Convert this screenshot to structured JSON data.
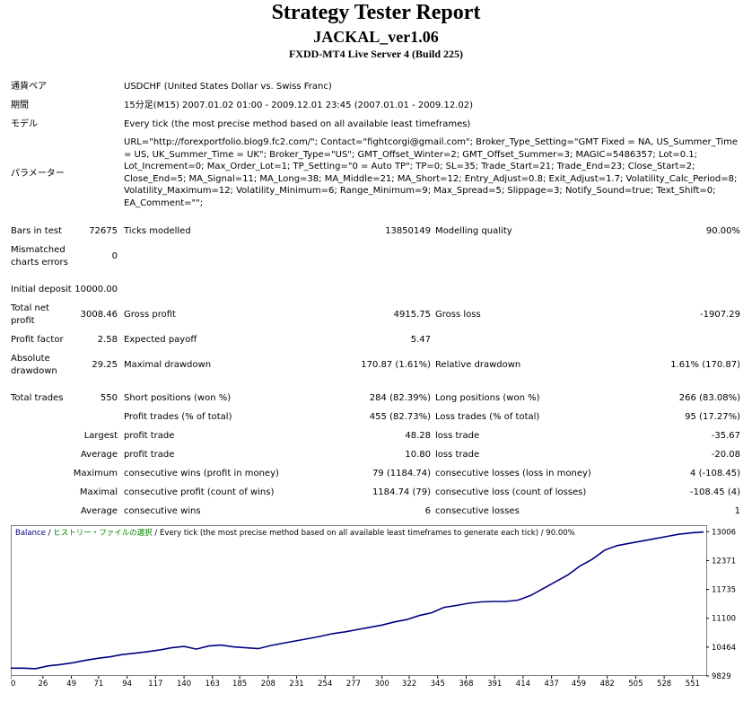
{
  "header": {
    "title": "Strategy Tester Report",
    "ea_name": "JACKAL_ver1.06",
    "server": "FXDD-MT4 Live Server 4 (Build 225)"
  },
  "settings": {
    "symbol_label": "通貨ペア",
    "symbol_value": "USDCHF (United States Dollar vs. Swiss Franc)",
    "period_label": "期間",
    "period_value": "15分足(M15) 2007.01.02 01:00 - 2009.12.01 23:45 (2007.01.01 - 2009.12.02)",
    "model_label": "モデル",
    "model_value": "Every tick (the most precise method based on all available least timeframes)",
    "params_label": "パラメーター",
    "params_value": "URL=\"http://forexportfolio.blog9.fc2.com/\"; Contact=\"fightcorgi@gmail.com\"; Broker_Type_Setting=\"GMT Fixed = NA, US_Summer_Time = US, UK_Summer_Time = UK\"; Broker_Type=\"US\"; GMT_Offset_Winter=2; GMT_Offset_Summer=3; MAGIC=5486357; Lot=0.1; Lot_Increment=0; Max_Order_Lot=1; TP_Setting=\"0 = Auto TP\"; TP=0; SL=35; Trade_Start=21; Trade_End=23; Close_Start=2; Close_End=5; MA_Signal=11; MA_Long=38; MA_Middle=21; MA_Short=12; Entry_Adjust=0.8; Exit_Adjust=1.7; Volatility_Calc_Period=8; Volatility_Maximum=12; Volatility_Minimum=6; Range_Minimum=9; Max_Spread=5; Slippage=3; Notify_Sound=true; Text_Shift=0; EA_Comment=\"\";"
  },
  "stats": {
    "bars_label": "Bars in test",
    "bars_value": "72675",
    "ticks_label": "Ticks modelled",
    "ticks_value": "13850149",
    "quality_label": "Modelling quality",
    "quality_value": "90.00%",
    "mismatch_label1": "Mismatched",
    "mismatch_label2": "charts errors",
    "mismatch_value": "0",
    "deposit_label": "Initial deposit",
    "deposit_value": "10000.00",
    "netprofit_label1": "Total net",
    "netprofit_label2": "profit",
    "netprofit_value": "3008.46",
    "grossprofit_label": "Gross profit",
    "grossprofit_value": "4915.75",
    "grossloss_label": "Gross loss",
    "grossloss_value": "-1907.29",
    "pf_label": "Profit factor",
    "pf_value": "2.58",
    "ep_label": "Expected payoff",
    "ep_value": "5.47",
    "absdd_label1": "Absolute",
    "absdd_label2": "drawdown",
    "absdd_value": "29.25",
    "maxdd_label": "Maximal drawdown",
    "maxdd_value": "170.87 (1.61%)",
    "reldd_label": "Relative drawdown",
    "reldd_value": "1.61% (170.87)",
    "trades_label": "Total trades",
    "trades_value": "550",
    "short_label": "Short positions (won %)",
    "short_value": "284 (82.39%)",
    "long_label": "Long positions (won %)",
    "long_value": "266 (83.08%)",
    "profit_trades_label": "Profit trades (% of total)",
    "profit_trades_value": "455 (82.73%)",
    "loss_trades_label": "Loss trades (% of total)",
    "loss_trades_value": "95 (17.27%)",
    "largest_label": "Largest",
    "largest_profit_label": "profit trade",
    "largest_profit_value": "48.28",
    "largest_loss_label": "loss trade",
    "largest_loss_value": "-35.67",
    "average_label": "Average",
    "average_profit_label": "profit trade",
    "average_profit_value": "10.80",
    "average_loss_label": "loss trade",
    "average_loss_value": "-20.08",
    "maximum_label": "Maximum",
    "max_cons_wins_label": "consecutive wins (profit in money)",
    "max_cons_wins_value": "79 (1184.74)",
    "max_cons_losses_label": "consecutive losses (loss in money)",
    "max_cons_losses_value": "4 (-108.45)",
    "maximal_label": "Maximal",
    "max_cons_profit_label": "consecutive profit (count of wins)",
    "max_cons_profit_value": "1184.74 (79)",
    "max_cons_loss_label": "consecutive loss (count of losses)",
    "max_cons_loss_value": "-108.45 (4)",
    "avg_label": "Average",
    "avg_cons_wins_label": "consecutive wins",
    "avg_cons_wins_value": "6",
    "avg_cons_losses_label": "consecutive losses",
    "avg_cons_losses_value": "1"
  },
  "chart_data": {
    "type": "line",
    "legend_balance": "Balance",
    "legend_history": "ヒストリー・ファイルの選択",
    "legend_rest": "Every tick (the most precise method based on all available least timeframes to generate each tick)",
    "legend_quality": "90.00%",
    "x_ticks": [
      0,
      26,
      49,
      71,
      94,
      117,
      140,
      163,
      185,
      208,
      231,
      254,
      277,
      300,
      322,
      345,
      368,
      391,
      414,
      437,
      459,
      482,
      505,
      528,
      551
    ],
    "y_ticks": [
      9829,
      10464,
      11100,
      11735,
      12371,
      13006
    ],
    "xlim": [
      0,
      562
    ],
    "ylim": [
      9829,
      13150
    ],
    "series": [
      {
        "color": "#000080",
        "x": [
          0,
          10,
          20,
          30,
          40,
          50,
          60,
          71,
          80,
          90,
          100,
          110,
          120,
          130,
          140,
          150,
          160,
          170,
          180,
          190,
          200,
          210,
          220,
          230,
          240,
          250,
          260,
          270,
          280,
          290,
          300,
          310,
          320,
          330,
          340,
          350,
          360,
          370,
          380,
          390,
          400,
          410,
          420,
          430,
          440,
          450,
          460,
          470,
          480,
          490,
          500,
          510,
          520,
          530,
          540,
          550,
          560
        ],
        "y": [
          10000,
          10000,
          9990,
          10050,
          10080,
          10120,
          10170,
          10220,
          10250,
          10300,
          10330,
          10360,
          10400,
          10450,
          10480,
          10420,
          10490,
          10510,
          10470,
          10450,
          10430,
          10500,
          10550,
          10600,
          10650,
          10700,
          10760,
          10800,
          10850,
          10900,
          10950,
          11020,
          11070,
          11160,
          11220,
          11340,
          11380,
          11430,
          11460,
          11470,
          11470,
          11500,
          11600,
          11750,
          11900,
          12050,
          12250,
          12400,
          12600,
          12700,
          12750,
          12800,
          12850,
          12900,
          12950,
          12980,
          13000
        ]
      }
    ]
  }
}
